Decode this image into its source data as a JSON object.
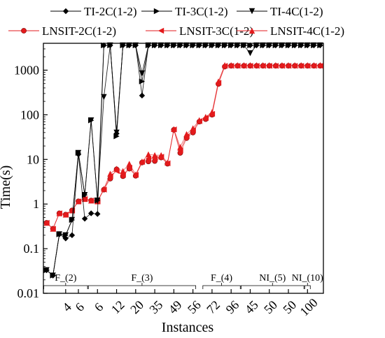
{
  "chart_data": {
    "type": "line",
    "title": "",
    "xlabel": "Instances",
    "ylabel": "Time(s)",
    "yscale": "log",
    "ylim": [
      0.01,
      4000
    ],
    "ytick_labels": [
      "0.01",
      "0.1",
      "1",
      "10",
      "100",
      "1000"
    ],
    "ytick_values": [
      0.01,
      0.1,
      1,
      10,
      100,
      1000
    ],
    "xtick_labels": [
      "4",
      "6",
      "6",
      "12",
      "20",
      "35",
      "49",
      "56",
      "72",
      "96",
      "45",
      "50",
      "50",
      "100"
    ],
    "xtick_index": [
      4,
      6,
      9,
      12,
      15,
      18,
      21,
      24,
      27,
      30,
      33,
      36,
      39,
      42
    ],
    "x": [
      1,
      2,
      3,
      4,
      5,
      6,
      7,
      8,
      9,
      10,
      11,
      12,
      13,
      14,
      15,
      16,
      17,
      18,
      19,
      20,
      21,
      22,
      23,
      24,
      25,
      26,
      27,
      28,
      29,
      30,
      31,
      32,
      33,
      34,
      35,
      36,
      37,
      38,
      39,
      40,
      41,
      42,
      43,
      44
    ],
    "groups": [
      {
        "label": "F_(2)",
        "from": 1,
        "to": 7
      },
      {
        "label": "F_(3)",
        "from": 8,
        "to": 24
      },
      {
        "label": "F_(4)",
        "from": 26,
        "to": 31
      },
      {
        "label": "NI_(5)",
        "from": 32,
        "to": 41
      },
      {
        "label": "NI_(10)",
        "from": 42,
        "to": 42
      }
    ],
    "legend_position": "top",
    "series": [
      {
        "name": "TI-2C(1-2)",
        "color": "#000000",
        "marker": "diamond",
        "values": [
          0.033,
          0.025,
          0.21,
          0.17,
          0.2,
          13,
          0.47,
          0.62,
          0.6,
          3600,
          3600,
          38,
          3600,
          3600,
          3600,
          270,
          3600,
          3600,
          3600,
          3600,
          3600,
          3600,
          3600,
          3600,
          3600,
          3600,
          3600,
          3600,
          3600,
          3600,
          3600,
          3600,
          3600,
          3600,
          3600,
          3600,
          3600,
          3600,
          3600,
          3600,
          3600,
          3600,
          3600,
          3600
        ]
      },
      {
        "name": "TI-3C(1-2)",
        "color": "#000000",
        "marker": "tri-right",
        "values": [
          0.033,
          0.025,
          0.21,
          0.2,
          0.44,
          14,
          1.6,
          75,
          1.2,
          3600,
          3600,
          33,
          3600,
          3600,
          3600,
          560,
          3600,
          3600,
          3600,
          3600,
          3600,
          3600,
          3600,
          3600,
          3600,
          3600,
          3600,
          3600,
          3600,
          3600,
          3600,
          3600,
          3600,
          3600,
          3600,
          3600,
          3600,
          3600,
          3600,
          3600,
          3600,
          3600,
          3600,
          3600
        ]
      },
      {
        "name": "TI-4C(1-2)",
        "color": "#000000",
        "marker": "tri-down",
        "values": [
          0.033,
          0.025,
          0.21,
          0.2,
          0.44,
          14,
          1.6,
          75,
          1.2,
          250,
          3600,
          40,
          3600,
          3600,
          3600,
          850,
          3600,
          3600,
          3600,
          3600,
          3600,
          3600,
          3600,
          3600,
          3600,
          3600,
          3600,
          3600,
          3600,
          3600,
          3600,
          3600,
          2400,
          3600,
          3600,
          3600,
          3600,
          3600,
          3600,
          3600,
          3600,
          3600,
          3600,
          3600
        ]
      },
      {
        "name": "LNSIT-2C(1-2)",
        "color": "#e31a1c",
        "marker": "circle",
        "values": [
          0.38,
          0.28,
          0.62,
          0.58,
          0.72,
          1.15,
          1.3,
          1.2,
          1.15,
          2.1,
          3.7,
          6.0,
          4.2,
          6.2,
          4.3,
          8.5,
          9.0,
          9.2,
          11,
          8.0,
          46,
          14,
          30,
          40,
          70,
          80,
          100,
          490,
          1200,
          1250,
          1250,
          1250,
          1250,
          1250,
          1250,
          1250,
          1250,
          1250,
          1250,
          1250,
          1250,
          1250,
          1250,
          1250
        ]
      },
      {
        "name": "LNSIT-3C(1-2)",
        "color": "#e31a1c",
        "marker": "tri-left",
        "values": [
          0.38,
          0.28,
          0.62,
          0.58,
          0.72,
          1.15,
          1.3,
          1.2,
          1.15,
          2.1,
          4.2,
          5.5,
          4.5,
          6.5,
          4.5,
          8.8,
          10.5,
          10.5,
          11.5,
          8.2,
          47,
          16,
          33,
          45,
          72,
          85,
          105,
          520,
          1250,
          1250,
          1250,
          1250,
          1250,
          1250,
          1250,
          1250,
          1250,
          1250,
          1250,
          1250,
          1250,
          1250,
          1250,
          1250
        ]
      },
      {
        "name": "LNSIT-4C(1-2)",
        "color": "#e31a1c",
        "marker": "tri-up",
        "values": [
          0.38,
          0.28,
          0.62,
          0.58,
          0.72,
          1.15,
          1.3,
          1.2,
          1.15,
          2.2,
          4.8,
          6.2,
          5.5,
          8.0,
          4.6,
          9.0,
          13,
          12.5,
          12.5,
          8.5,
          48,
          19,
          37,
          50,
          76,
          90,
          115,
          560,
          1300,
          1300,
          1300,
          1300,
          1300,
          1300,
          1300,
          1300,
          1300,
          1300,
          1300,
          1300,
          1300,
          1300,
          1300,
          1300
        ]
      }
    ]
  }
}
